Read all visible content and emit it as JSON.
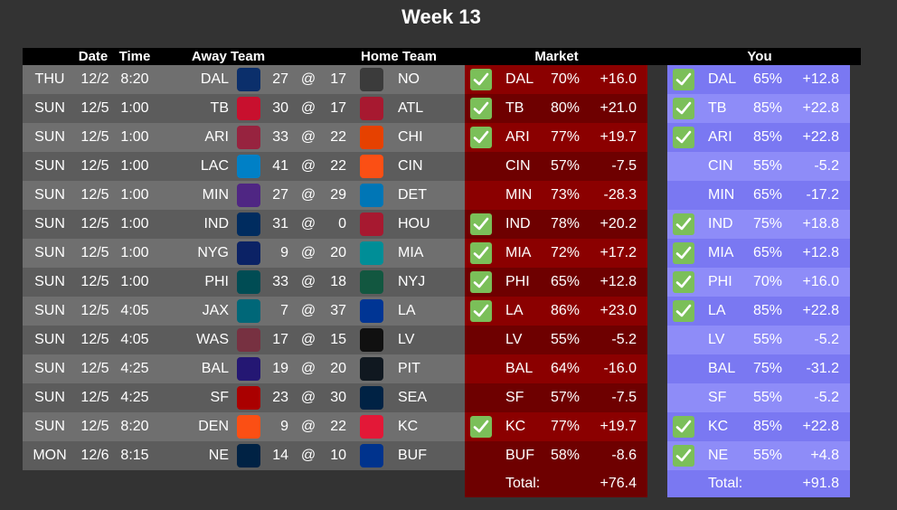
{
  "title": "Week 13",
  "headers": {
    "date": "Date",
    "time": "Time",
    "away": "Away Team",
    "home": "Home Team",
    "market": "Market",
    "you": "You"
  },
  "at_symbol": "@",
  "games": [
    {
      "day": "THU",
      "date": "12/2",
      "time": "8:20",
      "away": "DAL",
      "away_score": "27",
      "home_score": "17",
      "home": "NO",
      "market": {
        "check": true,
        "team": "DAL",
        "pct": "70%",
        "val": "+16.0"
      },
      "you": {
        "check": true,
        "team": "DAL",
        "pct": "65%",
        "val": "+12.8"
      },
      "away_color": "#0b2f6b",
      "home_color": "#3b3b3b"
    },
    {
      "day": "SUN",
      "date": "12/5",
      "time": "1:00",
      "away": "TB",
      "away_score": "30",
      "home_score": "17",
      "home": "ATL",
      "market": {
        "check": true,
        "team": "TB",
        "pct": "80%",
        "val": "+21.0"
      },
      "you": {
        "check": true,
        "team": "TB",
        "pct": "85%",
        "val": "+22.8"
      },
      "away_color": "#c8102e",
      "home_color": "#a71930"
    },
    {
      "day": "SUN",
      "date": "12/5",
      "time": "1:00",
      "away": "ARI",
      "away_score": "33",
      "home_score": "22",
      "home": "CHI",
      "market": {
        "check": true,
        "team": "ARI",
        "pct": "77%",
        "val": "+19.7"
      },
      "you": {
        "check": true,
        "team": "ARI",
        "pct": "85%",
        "val": "+22.8"
      },
      "away_color": "#97233f",
      "home_color": "#e64100"
    },
    {
      "day": "SUN",
      "date": "12/5",
      "time": "1:00",
      "away": "LAC",
      "away_score": "41",
      "home_score": "22",
      "home": "CIN",
      "market": {
        "check": false,
        "team": "CIN",
        "pct": "57%",
        "val": "-7.5"
      },
      "you": {
        "check": false,
        "team": "CIN",
        "pct": "55%",
        "val": "-5.2"
      },
      "away_color": "#0080c6",
      "home_color": "#fb4f14"
    },
    {
      "day": "SUN",
      "date": "12/5",
      "time": "1:00",
      "away": "MIN",
      "away_score": "27",
      "home_score": "29",
      "home": "DET",
      "market": {
        "check": false,
        "team": "MIN",
        "pct": "73%",
        "val": "-28.3"
      },
      "you": {
        "check": false,
        "team": "MIN",
        "pct": "65%",
        "val": "-17.2"
      },
      "away_color": "#4f2683",
      "home_color": "#0076b6"
    },
    {
      "day": "SUN",
      "date": "12/5",
      "time": "1:00",
      "away": "IND",
      "away_score": "31",
      "home_score": "0",
      "home": "HOU",
      "market": {
        "check": true,
        "team": "IND",
        "pct": "78%",
        "val": "+20.2"
      },
      "you": {
        "check": true,
        "team": "IND",
        "pct": "75%",
        "val": "+18.8"
      },
      "away_color": "#002c5f",
      "home_color": "#a71930"
    },
    {
      "day": "SUN",
      "date": "12/5",
      "time": "1:00",
      "away": "NYG",
      "away_score": "9",
      "home_score": "20",
      "home": "MIA",
      "market": {
        "check": true,
        "team": "MIA",
        "pct": "72%",
        "val": "+17.2"
      },
      "you": {
        "check": true,
        "team": "MIA",
        "pct": "65%",
        "val": "+12.8"
      },
      "away_color": "#0b2265",
      "home_color": "#008e97"
    },
    {
      "day": "SUN",
      "date": "12/5",
      "time": "1:00",
      "away": "PHI",
      "away_score": "33",
      "home_score": "18",
      "home": "NYJ",
      "market": {
        "check": true,
        "team": "PHI",
        "pct": "65%",
        "val": "+12.8"
      },
      "you": {
        "check": true,
        "team": "PHI",
        "pct": "70%",
        "val": "+16.0"
      },
      "away_color": "#004c54",
      "home_color": "#125740"
    },
    {
      "day": "SUN",
      "date": "12/5",
      "time": "4:05",
      "away": "JAX",
      "away_score": "7",
      "home_score": "37",
      "home": "LA",
      "market": {
        "check": true,
        "team": "LA",
        "pct": "86%",
        "val": "+23.0"
      },
      "you": {
        "check": true,
        "team": "LA",
        "pct": "85%",
        "val": "+22.8"
      },
      "away_color": "#006778",
      "home_color": "#003594"
    },
    {
      "day": "SUN",
      "date": "12/5",
      "time": "4:05",
      "away": "WAS",
      "away_score": "17",
      "home_score": "15",
      "home": "LV",
      "market": {
        "check": false,
        "team": "LV",
        "pct": "55%",
        "val": "-5.2"
      },
      "you": {
        "check": false,
        "team": "LV",
        "pct": "55%",
        "val": "-5.2"
      },
      "away_color": "#773141",
      "home_color": "#101010"
    },
    {
      "day": "SUN",
      "date": "12/5",
      "time": "4:25",
      "away": "BAL",
      "away_score": "19",
      "home_score": "20",
      "home": "PIT",
      "market": {
        "check": false,
        "team": "BAL",
        "pct": "64%",
        "val": "-16.0"
      },
      "you": {
        "check": false,
        "team": "BAL",
        "pct": "75%",
        "val": "-31.2"
      },
      "away_color": "#241773",
      "home_color": "#101820"
    },
    {
      "day": "SUN",
      "date": "12/5",
      "time": "4:25",
      "away": "SF",
      "away_score": "23",
      "home_score": "30",
      "home": "SEA",
      "market": {
        "check": false,
        "team": "SF",
        "pct": "57%",
        "val": "-7.5"
      },
      "you": {
        "check": false,
        "team": "SF",
        "pct": "55%",
        "val": "-5.2"
      },
      "away_color": "#aa0000",
      "home_color": "#002244"
    },
    {
      "day": "SUN",
      "date": "12/5",
      "time": "8:20",
      "away": "DEN",
      "away_score": "9",
      "home_score": "22",
      "home": "KC",
      "market": {
        "check": true,
        "team": "KC",
        "pct": "77%",
        "val": "+19.7"
      },
      "you": {
        "check": true,
        "team": "KC",
        "pct": "85%",
        "val": "+22.8"
      },
      "away_color": "#fb4f14",
      "home_color": "#e31837"
    },
    {
      "day": "MON",
      "date": "12/6",
      "time": "8:15",
      "away": "NE",
      "away_score": "14",
      "home_score": "10",
      "home": "BUF",
      "market": {
        "check": false,
        "team": "BUF",
        "pct": "58%",
        "val": "-8.6"
      },
      "you": {
        "check": true,
        "team": "NE",
        "pct": "55%",
        "val": "+4.8"
      },
      "away_color": "#002244",
      "home_color": "#00338d"
    }
  ],
  "totals": {
    "label": "Total:",
    "market": "+76.4",
    "you": "+91.8"
  },
  "colors": {
    "market_dark": "#6e0000",
    "market_light": "#8b0000",
    "you_a": "#7a78f2",
    "you_b": "#8e8cf8",
    "check": "#7bbf59"
  }
}
